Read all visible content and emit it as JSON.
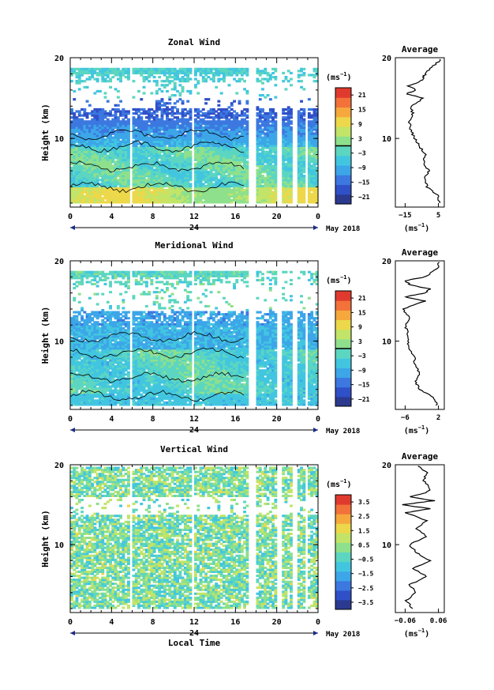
{
  "figure": {
    "date_label": "May 2018",
    "bottom_xlabel": "Local Time",
    "ylabel": "Height (km)",
    "cbar_units": "(ms",
    "cbar_units_exp": "−1",
    "avg_title": "Average",
    "avg_unit": "(ms",
    "avg_unit_exp": "−1",
    "day_label": "24"
  },
  "colors": {
    "scale": [
      "#2b3a8f",
      "#3050c8",
      "#3c78e0",
      "#3ca6e8",
      "#42c6e0",
      "#5cd6c0",
      "#8ee08c",
      "#c2e468",
      "#ecd84a",
      "#f6a83c",
      "#f2723a",
      "#e03a2e"
    ]
  },
  "chart_data": [
    {
      "type": "heatmap",
      "title": "Zonal Wind",
      "xlabel": "",
      "ylabel": "Height (km)",
      "x_ticks": [
        "0",
        "4",
        "8",
        "12",
        "16",
        "20",
        "0"
      ],
      "y_ticks": [
        "20",
        "10"
      ],
      "xlim": [
        0,
        24
      ],
      "ylim": [
        1.5,
        20
      ],
      "colorbar": {
        "units": "(ms−1)",
        "ticks": [
          "21",
          "15",
          "9",
          "3",
          "−3",
          "−9",
          "−15",
          "−21"
        ],
        "range": [
          -24,
          24
        ]
      },
      "field": "zonal",
      "average_profile": {
        "title": "Average",
        "xlim": [
          -20,
          8
        ],
        "x_ticks": [
          "−15",
          "5"
        ],
        "y_ticks": [
          "20",
          "10"
        ],
        "height_km": [
          2,
          3,
          4,
          5,
          6,
          7,
          8,
          9,
          10,
          11,
          12,
          13,
          14,
          15,
          15.5,
          16,
          16.5,
          17,
          17.5,
          18,
          19,
          20
        ],
        "values": [
          5,
          4,
          -2,
          -3,
          -1,
          -4,
          -3,
          -6,
          -9,
          -11,
          -12,
          -10,
          -11,
          -4,
          -14,
          -8,
          -13,
          -6,
          -4,
          -3,
          2,
          7
        ]
      }
    },
    {
      "type": "heatmap",
      "title": "Meridional Wind",
      "xlabel": "",
      "ylabel": "Height (km)",
      "x_ticks": [
        "0",
        "4",
        "8",
        "12",
        "16",
        "20",
        "0"
      ],
      "y_ticks": [
        "20",
        "10"
      ],
      "xlim": [
        0,
        24
      ],
      "ylim": [
        1.5,
        20
      ],
      "colorbar": {
        "units": "(ms−1)",
        "ticks": [
          "21",
          "15",
          "9",
          "3",
          "−3",
          "−9",
          "−15",
          "−21"
        ],
        "range": [
          -24,
          24
        ]
      },
      "field": "meridional",
      "average_profile": {
        "title": "Average",
        "xlim": [
          -7,
          3
        ],
        "x_ticks": [
          "−6",
          "2"
        ],
        "y_ticks": [
          "20",
          "10"
        ],
        "height_km": [
          2,
          3,
          4,
          5,
          6,
          7,
          8,
          9,
          10,
          11,
          12,
          13,
          14,
          15,
          15.5,
          16,
          16.5,
          17,
          17.5,
          18,
          19,
          20
        ],
        "values": [
          1.5,
          1,
          -2,
          -3,
          -2,
          -3,
          -3,
          -4,
          -4.5,
          -4.5,
          -5,
          -4,
          -5.5,
          -1,
          -5,
          -1,
          0,
          -4,
          -5,
          -1,
          1.5,
          2
        ]
      }
    },
    {
      "type": "heatmap",
      "title": "Vertical Wind",
      "xlabel": "Local Time",
      "ylabel": "Height (km)",
      "x_ticks": [
        "0",
        "4",
        "8",
        "12",
        "16",
        "20",
        "0"
      ],
      "y_ticks": [
        "20",
        "10"
      ],
      "xlim": [
        0,
        24
      ],
      "ylim": [
        1.5,
        20
      ],
      "colorbar": {
        "units": "(ms−1)",
        "ticks": [
          "3.5",
          "2.5",
          "1.5",
          "0.5",
          "−0.5",
          "−1.5",
          "−2.5",
          "−3.5"
        ],
        "range": [
          -4,
          4
        ]
      },
      "field": "vertical",
      "average_profile": {
        "title": "Average",
        "xlim": [
          -0.07,
          0.07
        ],
        "x_ticks": [
          "−0.06",
          "0.06"
        ],
        "y_ticks": [
          "20",
          "10"
        ],
        "height_km": [
          2,
          3,
          4,
          5,
          6,
          7,
          8,
          9,
          10,
          11,
          12,
          13,
          14,
          14.5,
          15,
          15.5,
          16,
          16.5,
          17,
          18,
          19,
          20
        ],
        "values": [
          -0.02,
          -0.04,
          -0.01,
          -0.03,
          0.02,
          -0.02,
          0.03,
          -0.01,
          -0.03,
          0.02,
          -0.01,
          0.02,
          -0.04,
          0.03,
          -0.05,
          0.04,
          -0.03,
          0.02,
          0.03,
          0.01,
          0.02,
          -0.01
        ]
      }
    }
  ]
}
